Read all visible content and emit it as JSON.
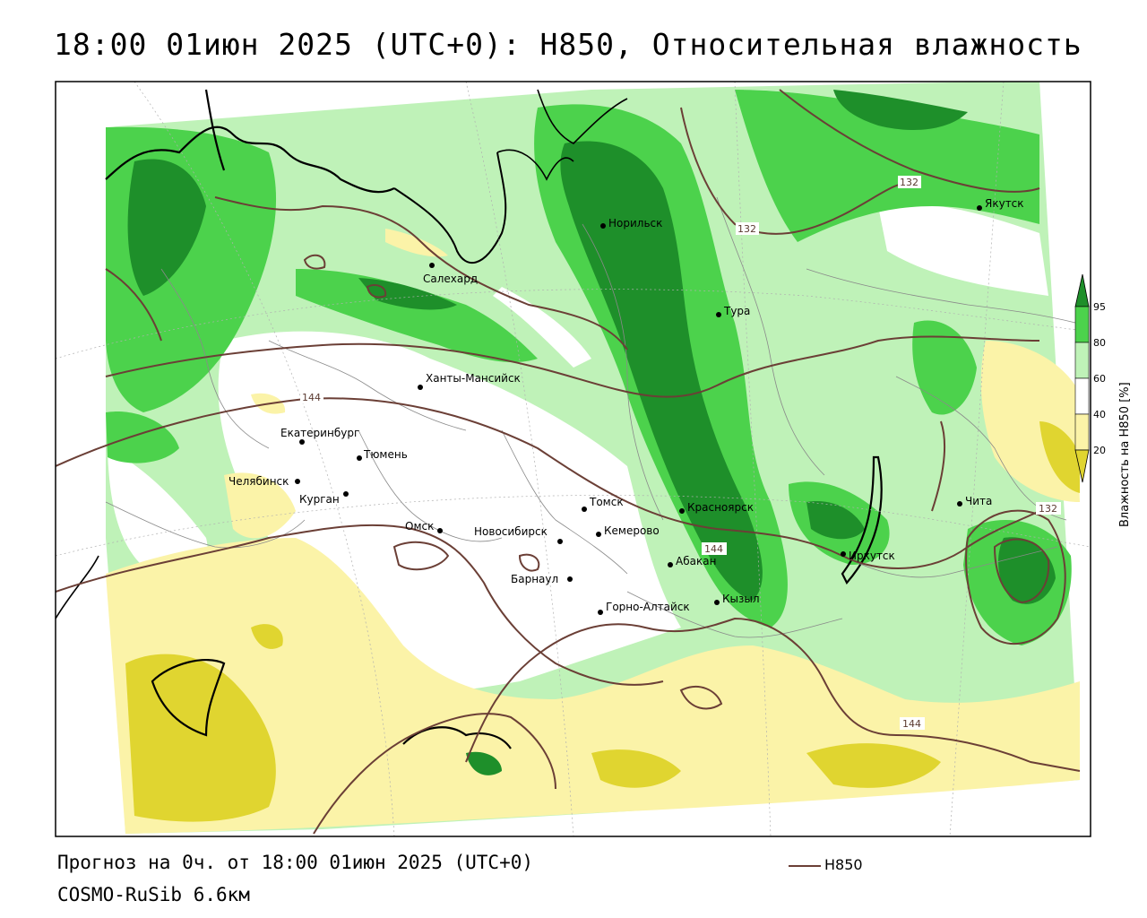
{
  "title": "18:00 01июн 2025 (UTC+0): H850, Относительная влажность",
  "footer": {
    "line1": "Прогноз на 0ч. от 18:00 01июн 2025 (UTC+0)",
    "line2": "COSMO-RuSib 6.6км"
  },
  "legend": {
    "series_label": "H850",
    "line_color": "#6b3f36"
  },
  "colorbar": {
    "title": "Влажность на H850 [%]",
    "ticks": [
      "95",
      "80",
      "60",
      "40",
      "20"
    ],
    "colors": {
      "very_wet": "#1e8f2a",
      "wet": "#4cd24c",
      "moist": "#bff2b8",
      "neutral": "#ffffff",
      "dry": "#fbf3a8",
      "very_dry": "#e0d530"
    }
  },
  "cities": [
    {
      "name": "Норильск"
    },
    {
      "name": "Якутск"
    },
    {
      "name": "Салехард"
    },
    {
      "name": "Тура"
    },
    {
      "name": "Ханты-Мансийск"
    },
    {
      "name": "Екатеринбург"
    },
    {
      "name": "Тюмень"
    },
    {
      "name": "Челябинск"
    },
    {
      "name": "Курган"
    },
    {
      "name": "Омск"
    },
    {
      "name": "Новосибирск"
    },
    {
      "name": "Томск"
    },
    {
      "name": "Кемерово"
    },
    {
      "name": "Красноярск"
    },
    {
      "name": "Абакан"
    },
    {
      "name": "Барнаул"
    },
    {
      "name": "Горно-Алтайск"
    },
    {
      "name": "Кызыл"
    },
    {
      "name": "Иркутск"
    },
    {
      "name": "Чита"
    }
  ],
  "contour_labels": [
    "132",
    "132",
    "144",
    "144",
    "132",
    "144"
  ]
}
